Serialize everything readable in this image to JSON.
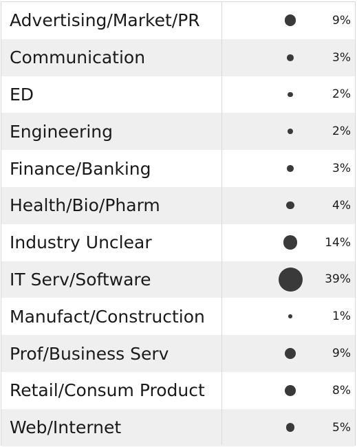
{
  "chart_data": {
    "type": "table",
    "title": "",
    "categories": [
      "Advertising/Market/PR",
      "Communication",
      "ED",
      "Engineering",
      "Finance/Banking",
      "Health/Bio/Pharm",
      "Industry Unclear",
      "IT Serv/Software",
      "Manufact/Construction",
      "Prof/Business Serv",
      "Retail/Consum Product",
      "Web/Internet"
    ],
    "values": [
      9,
      3,
      2,
      2,
      3,
      4,
      14,
      39,
      1,
      9,
      8,
      5
    ],
    "labels": [
      "9%",
      "3%",
      "2%",
      "2%",
      "3%",
      "4%",
      "14%",
      "39%",
      "1%",
      "9%",
      "8%",
      "5%"
    ],
    "marker": "circle-area",
    "colors": {
      "dot": "#3a3a3a",
      "band": "#efefef",
      "grid": "#d9d9d9"
    }
  }
}
